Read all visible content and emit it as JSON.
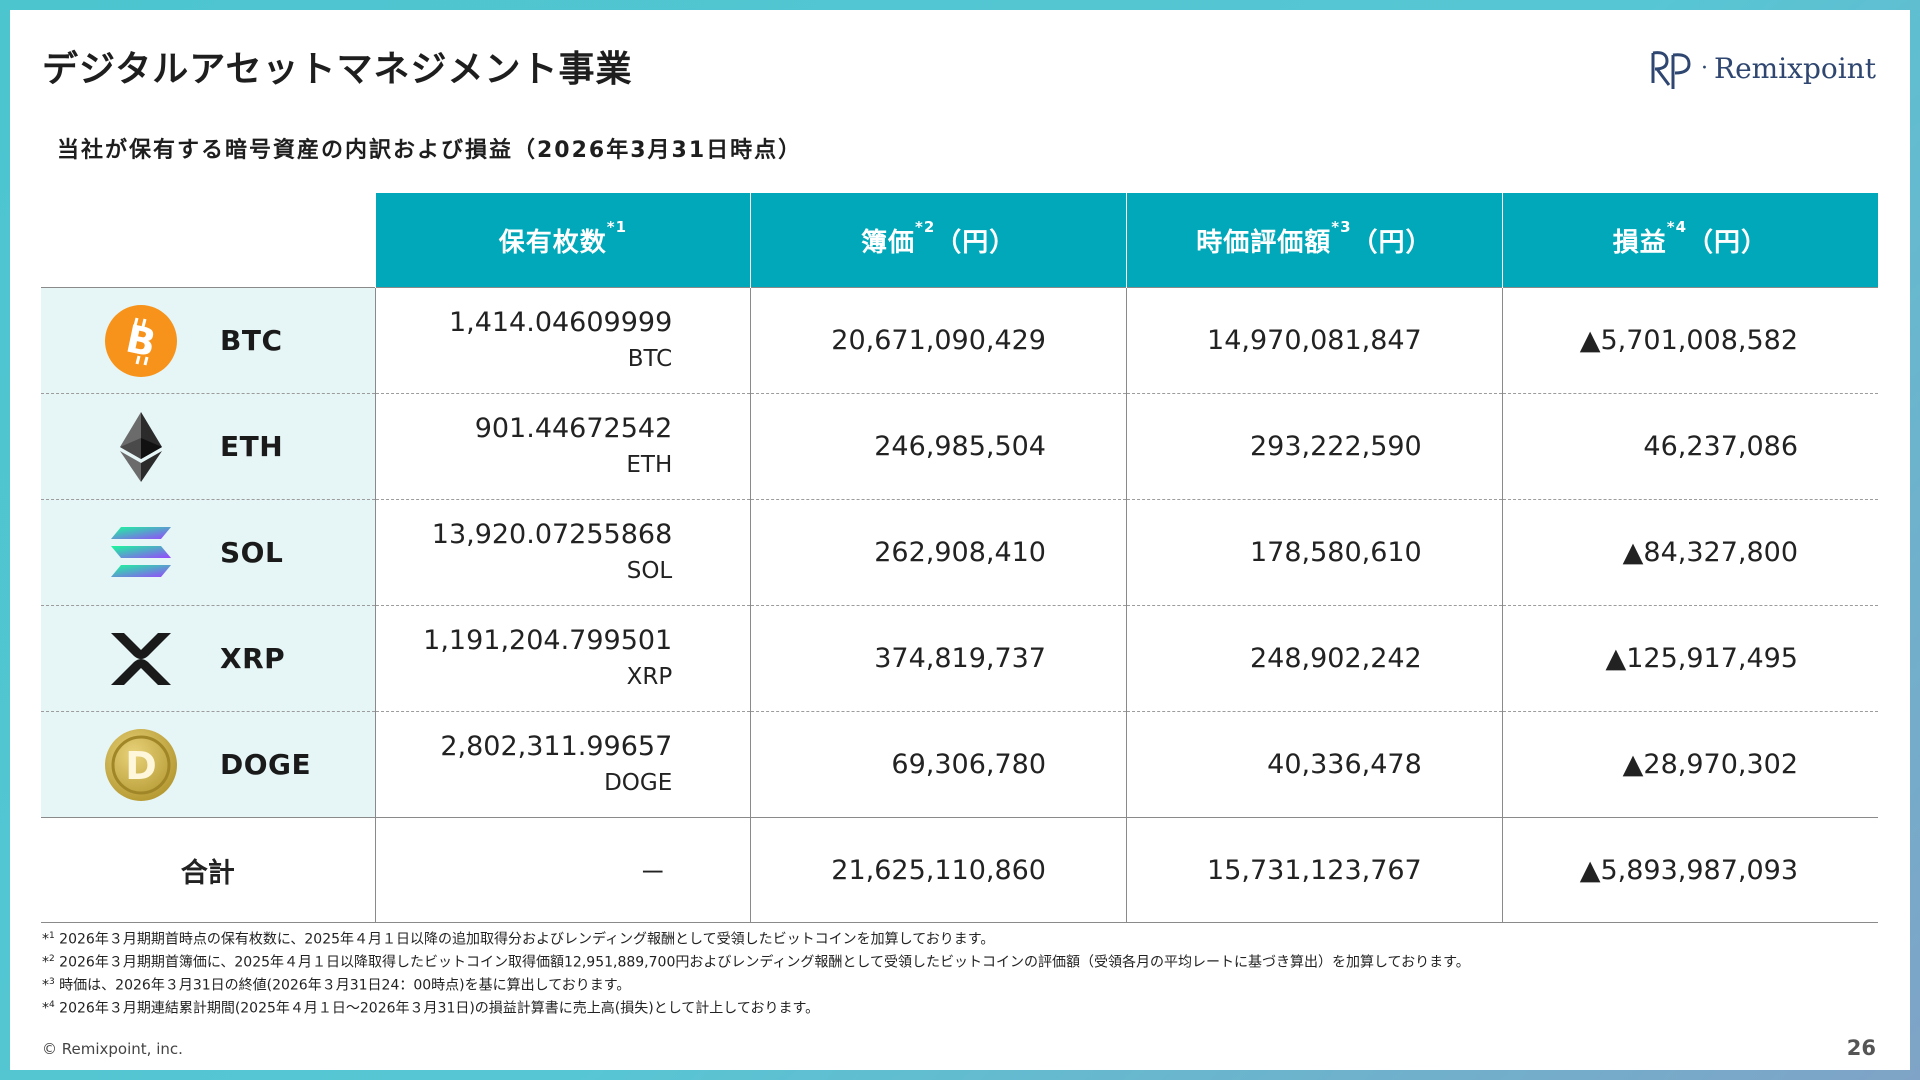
{
  "slide": {
    "title": "デジタルアセットマネジメント事業",
    "subtitle": "当社が保有する暗号資産の内訳および損益（2026年3月31日時点）",
    "logo_text": "Remixpoint",
    "logo_dot": "·",
    "page_number": "26",
    "copyright": "© Remixpoint, inc."
  },
  "table": {
    "headers": [
      {
        "label": "保有枚数",
        "note": "*1",
        "suffix": ""
      },
      {
        "label": "簿価",
        "note": "*2",
        "suffix": "（円）"
      },
      {
        "label": "時価評価額",
        "note": "*3",
        "suffix": "（円）"
      },
      {
        "label": "損益",
        "note": "*4",
        "suffix": "（円）"
      }
    ],
    "rows": [
      {
        "symbol": "BTC",
        "icon": "bitcoin-icon",
        "quantity": "1,414.04609999",
        "unit": "BTC",
        "book_value": "20,671,090,429",
        "market_value": "14,970,081,847",
        "profit_loss": "▲5,701,008,582"
      },
      {
        "symbol": "ETH",
        "icon": "ethereum-icon",
        "quantity": "901.44672542",
        "unit": "ETH",
        "book_value": "246,985,504",
        "market_value": "293,222,590",
        "profit_loss": "46,237,086"
      },
      {
        "symbol": "SOL",
        "icon": "solana-icon",
        "quantity": "13,920.07255868",
        "unit": "SOL",
        "book_value": "262,908,410",
        "market_value": "178,580,610",
        "profit_loss": "▲84,327,800"
      },
      {
        "symbol": "XRP",
        "icon": "xrp-icon",
        "quantity": "1,191,204.799501",
        "unit": "XRP",
        "book_value": "374,819,737",
        "market_value": "248,902,242",
        "profit_loss": "▲125,917,495"
      },
      {
        "symbol": "DOGE",
        "icon": "dogecoin-icon",
        "quantity": "2,802,311.99657",
        "unit": "DOGE",
        "book_value": "69,306,780",
        "market_value": "40,336,478",
        "profit_loss": "▲28,970,302"
      }
    ],
    "total": {
      "label": "合計",
      "quantity": "－",
      "book_value": "21,625,110,860",
      "market_value": "15,731,123,767",
      "profit_loss": "▲5,893,987,093"
    }
  },
  "footnotes": [
    {
      "mark": "*",
      "num": "1",
      "text": " 2026年３月期期首時点の保有枚数に、2025年４月１日以降の追加取得分およびレンディング報酬として受領したビットコインを加算しております。"
    },
    {
      "mark": "*",
      "num": "2",
      "text": " 2026年３月期期首簿価に、2025年４月１日以降取得したビットコイン取得価額12,951,889,700円およびレンディング報酬として受領したビットコインの評価額（受領各月の平均レートに基づき算出）を加算しております。"
    },
    {
      "mark": "*",
      "num": "3",
      "text": " 時価は、2026年３月31日の終値(2026年３月31日24：00時点)を基に算出しております。"
    },
    {
      "mark": "*",
      "num": "4",
      "text": " 2026年３月期連結累計期間(2025年４月１日～2026年３月31日)の損益計算書に売上高(損失)として計上しております。"
    }
  ],
  "colors": {
    "header_bg": "#00a8b9",
    "coin_cell_bg": "#e6f5f6",
    "frame": "#4cc5cf",
    "logo": "#2e4670"
  }
}
